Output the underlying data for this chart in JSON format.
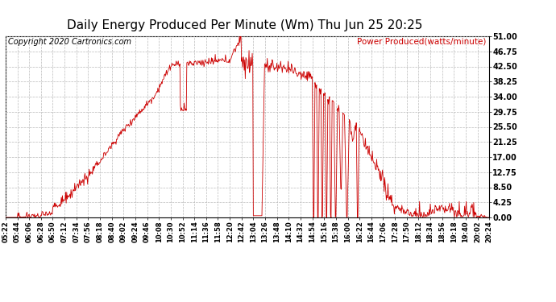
{
  "title": "Daily Energy Produced Per Minute (Wm) Thu Jun 25 20:25",
  "title_fontsize": 11,
  "copyright_text": "Copyright 2020 Cartronics.com",
  "copyright_fontsize": 7,
  "legend_text": "Power Produced(watts/minute)",
  "legend_color": "#cc0000",
  "background_color": "#ffffff",
  "grid_color": "#bbbbbb",
  "line_color": "#cc0000",
  "ylabel_right_labels": [
    "0.00",
    "4.25",
    "8.50",
    "12.75",
    "17.00",
    "21.25",
    "25.50",
    "29.75",
    "34.00",
    "38.25",
    "42.50",
    "46.75",
    "51.00"
  ],
  "ylabel_right_values": [
    0.0,
    4.25,
    8.5,
    12.75,
    17.0,
    21.25,
    25.5,
    29.75,
    34.0,
    38.25,
    42.5,
    46.75,
    51.0
  ],
  "ymax": 51.0,
  "ymin": 0.0,
  "x_tick_labels": [
    "05:22",
    "05:44",
    "06:06",
    "06:28",
    "06:50",
    "07:12",
    "07:34",
    "07:56",
    "08:18",
    "08:40",
    "09:02",
    "09:24",
    "09:46",
    "10:08",
    "10:30",
    "10:52",
    "11:14",
    "11:36",
    "11:58",
    "12:20",
    "12:42",
    "13:04",
    "13:26",
    "13:48",
    "14:10",
    "14:32",
    "14:54",
    "15:16",
    "15:38",
    "16:00",
    "16:22",
    "16:44",
    "17:06",
    "17:28",
    "17:50",
    "18:12",
    "18:34",
    "18:56",
    "19:18",
    "19:40",
    "20:02",
    "20:24"
  ],
  "start_time": "05:22",
  "end_time": "20:24"
}
